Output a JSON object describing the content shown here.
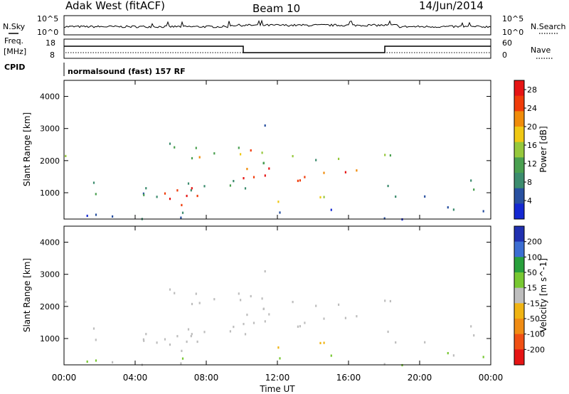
{
  "header": {
    "station": "Adak West (fitACF)",
    "beam": "Beam 10",
    "date": "14/Jun/2014"
  },
  "summary_panels": {
    "nsky": {
      "label": "N.Sky",
      "tick_top": "10^5",
      "tick_bottom": "10^0",
      "right_tick_top": "10^5",
      "right_tick_bottom": "10^0",
      "right_label": "N.Search"
    },
    "freq": {
      "label_line1": "Freq.",
      "label_line2": "[MHz]",
      "tick_top": "18",
      "tick_bottom": "8",
      "right_tick_top": "60",
      "right_tick_bottom": "0",
      "right_label": "Nave"
    },
    "cpid": {
      "label": "CPID",
      "text": "normalsound (fast) 157 RF"
    }
  },
  "colors": {
    "power_scale": [
      "#1428d2",
      "#2850a0",
      "#3c8c6e",
      "#4aa050",
      "#96c83c",
      "#f0c814",
      "#f08c0a",
      "#f03c0a",
      "#e61414"
    ],
    "velocity_scale": [
      "#2030b0",
      "#3c6ed2",
      "#28a03c",
      "#78c832",
      "#bebebe",
      "#f0b414",
      "#f08c14",
      "#f05014",
      "#e61414"
    ],
    "scatter_gray": "#bdbdbd"
  },
  "chart_data": [
    {
      "type": "heatmap",
      "panel": "power",
      "xlabel": "",
      "ylabel": "Slant Range [km]",
      "x_ticks": [
        "00:00",
        "04:00",
        "08:00",
        "12:00",
        "16:00",
        "20:00",
        "00:00"
      ],
      "y_ticks": [
        1000,
        2000,
        3000,
        4000
      ],
      "xlim_hours": [
        0,
        24
      ],
      "ylim_km": [
        180,
        4500
      ],
      "colorbar": {
        "label": "Power [dB]",
        "ticks": [
          4,
          8,
          12,
          16,
          20,
          24,
          28
        ],
        "range": [
          0,
          30
        ]
      },
      "features": [
        {
          "t_start": 0.0,
          "t_end": 10.2,
          "range_low": 900,
          "range_high": 1400,
          "level_db": 8
        },
        {
          "t_start": 5.5,
          "t_end": 7.8,
          "range_low": 650,
          "range_high": 1350,
          "level_db": 28
        },
        {
          "t_start": 10.0,
          "t_end": 18.0,
          "range_low": 1400,
          "range_high": 1800,
          "level_db": 28
        },
        {
          "t_start": 12.0,
          "t_end": 15.5,
          "range_low": 650,
          "range_high": 900,
          "level_db": 16
        },
        {
          "t_start": 10.0,
          "t_end": 13.0,
          "range_low": 2200,
          "range_high": 2500,
          "level_db": 20
        },
        {
          "t_start": 0.0,
          "t_end": 8.0,
          "range_low": 2000,
          "range_high": 2700,
          "level_db": 8
        }
      ]
    },
    {
      "type": "heatmap",
      "panel": "velocity",
      "xlabel": "Time UT",
      "ylabel": "Slant Range [km]",
      "x_ticks": [
        "00:00",
        "04:00",
        "08:00",
        "12:00",
        "16:00",
        "20:00",
        "00:00"
      ],
      "y_ticks": [
        1000,
        2000,
        3000,
        4000
      ],
      "xlim_hours": [
        0,
        24
      ],
      "ylim_km": [
        180,
        4500
      ],
      "colorbar": {
        "label": "Velocity [m s^-1]",
        "ticks": [
          200,
          100,
          50,
          15,
          -15,
          -50,
          -100,
          -200
        ],
        "range": [
          -250,
          250
        ]
      },
      "features": [
        {
          "t_start": 0.0,
          "t_end": 10.2,
          "range_low": 800,
          "range_high": 1400,
          "velocity": 0
        },
        {
          "t_start": 10.0,
          "t_end": 18.0,
          "range_low": 1400,
          "range_high": 1800,
          "velocity": 0
        },
        {
          "t_start": 12.0,
          "t_end": 15.5,
          "range_low": 650,
          "range_high": 1000,
          "velocity": -50
        },
        {
          "t_start": 12.5,
          "t_end": 13.5,
          "range_low": 2700,
          "range_high": 3200,
          "velocity": -50
        }
      ]
    }
  ]
}
